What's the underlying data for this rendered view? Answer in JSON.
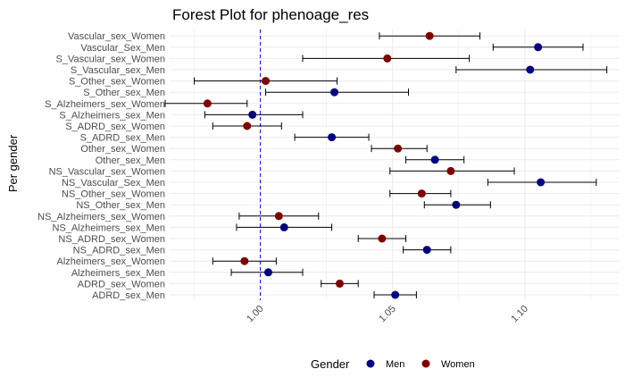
{
  "chart_data": {
    "type": "scatter",
    "title": "Forest Plot for phenoage_res",
    "ylabel": "Per gender",
    "xlabel": "",
    "xlim": [
      0.9657,
      1.1355
    ],
    "xticks": [
      1.0,
      1.05,
      1.1
    ],
    "xtick_labels": [
      "1.00",
      "1.05",
      "1.10"
    ],
    "reference_line": 1.0,
    "reference_line_color": "#0000ff",
    "grid": true,
    "legend": {
      "title": "Gender",
      "placement": "bottom",
      "entries": [
        {
          "label": "Men",
          "color": "#000080"
        },
        {
          "label": "Women",
          "color": "#800000"
        }
      ]
    },
    "rows": [
      {
        "label": "Vascular_sex_Women",
        "gender": "Women",
        "estimate": 1.064,
        "lower": 1.045,
        "upper": 1.083
      },
      {
        "label": "Vascular_Sex_Men",
        "gender": "Men",
        "estimate": 1.105,
        "lower": 1.088,
        "upper": 1.122
      },
      {
        "label": "S_Vascular_sex_Women",
        "gender": "Women",
        "estimate": 1.048,
        "lower": 1.016,
        "upper": 1.079
      },
      {
        "label": "S_Vascular_sex_Men",
        "gender": "Men",
        "estimate": 1.102,
        "lower": 1.074,
        "upper": 1.131
      },
      {
        "label": "S_Other_sex_Women",
        "gender": "Women",
        "estimate": 1.002,
        "lower": 0.975,
        "upper": 1.029
      },
      {
        "label": "S_Other_sex_Men",
        "gender": "Men",
        "estimate": 1.028,
        "lower": 1.002,
        "upper": 1.056
      },
      {
        "label": "S_Alzheimers_sex_Women",
        "gender": "Women",
        "estimate": 0.98,
        "lower": 0.964,
        "upper": 0.995
      },
      {
        "label": "S_Alzheimers_sex_Men",
        "gender": "Men",
        "estimate": 0.997,
        "lower": 0.979,
        "upper": 1.016
      },
      {
        "label": "S_ADRD_sex_Women",
        "gender": "Women",
        "estimate": 0.995,
        "lower": 0.982,
        "upper": 1.008
      },
      {
        "label": "S_ADRD_sex_Men",
        "gender": "Men",
        "estimate": 1.027,
        "lower": 1.013,
        "upper": 1.041
      },
      {
        "label": "Other_sex_Women",
        "gender": "Women",
        "estimate": 1.052,
        "lower": 1.042,
        "upper": 1.063
      },
      {
        "label": "Other_sex_Men",
        "gender": "Men",
        "estimate": 1.066,
        "lower": 1.055,
        "upper": 1.077
      },
      {
        "label": "NS_Vascular_sex_Women",
        "gender": "Women",
        "estimate": 1.072,
        "lower": 1.049,
        "upper": 1.096
      },
      {
        "label": "NS_Vascular_Sex_Men",
        "gender": "Men",
        "estimate": 1.106,
        "lower": 1.086,
        "upper": 1.127
      },
      {
        "label": "NS_Other_sex_Women",
        "gender": "Women",
        "estimate": 1.061,
        "lower": 1.049,
        "upper": 1.072
      },
      {
        "label": "NS_Other_sex_Men",
        "gender": "Men",
        "estimate": 1.074,
        "lower": 1.062,
        "upper": 1.087
      },
      {
        "label": "NS_Alzheimers_sex_Women",
        "gender": "Women",
        "estimate": 1.007,
        "lower": 0.992,
        "upper": 1.022
      },
      {
        "label": "NS_Alzheimers_sex_Men",
        "gender": "Men",
        "estimate": 1.009,
        "lower": 0.991,
        "upper": 1.027
      },
      {
        "label": "NS_ADRD_sex_Women",
        "gender": "Women",
        "estimate": 1.046,
        "lower": 1.037,
        "upper": 1.055
      },
      {
        "label": "NS_ADRD_sex_Men",
        "gender": "Men",
        "estimate": 1.063,
        "lower": 1.054,
        "upper": 1.072
      },
      {
        "label": "Alzheimers_sex_Women",
        "gender": "Women",
        "estimate": 0.994,
        "lower": 0.982,
        "upper": 1.006
      },
      {
        "label": "Alzheimers_sex_Men",
        "gender": "Men",
        "estimate": 1.003,
        "lower": 0.989,
        "upper": 1.016
      },
      {
        "label": "ADRD_sex_Women",
        "gender": "Women",
        "estimate": 1.03,
        "lower": 1.023,
        "upper": 1.037
      },
      {
        "label": "ADRD_sex_Men",
        "gender": "Men",
        "estimate": 1.051,
        "lower": 1.043,
        "upper": 1.059
      }
    ]
  }
}
